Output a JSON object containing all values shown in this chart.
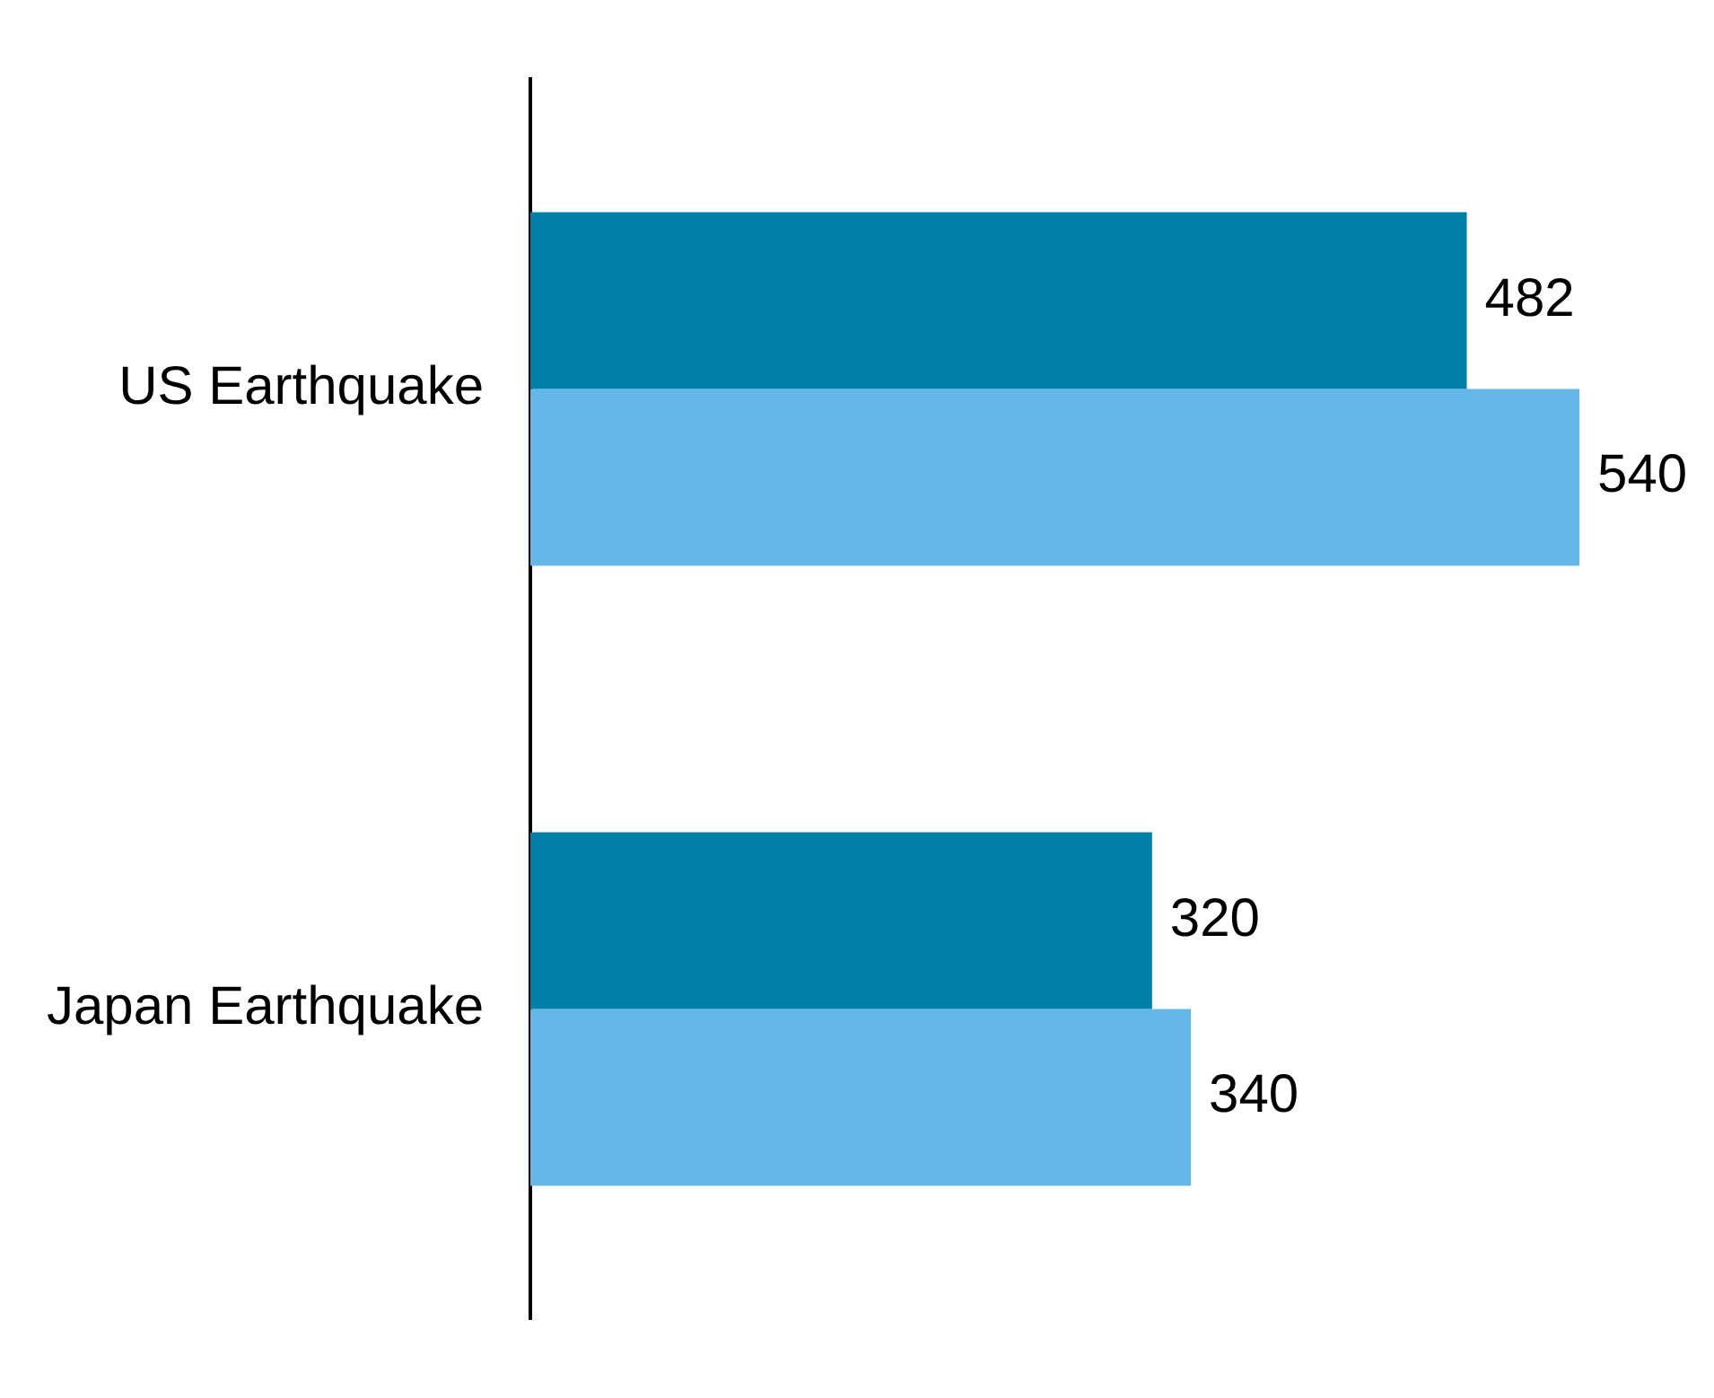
{
  "chart_data": {
    "type": "bar",
    "orientation": "horizontal",
    "categories": [
      "US Earthquake",
      "Japan Earthquake"
    ],
    "series": [
      {
        "color": "#0080a9",
        "values": [
          482,
          320
        ]
      },
      {
        "color": "#63b8e8",
        "values": [
          540,
          340
        ]
      }
    ],
    "data_labels": true,
    "grid": false,
    "legend": false,
    "tick_labels": "y"
  }
}
